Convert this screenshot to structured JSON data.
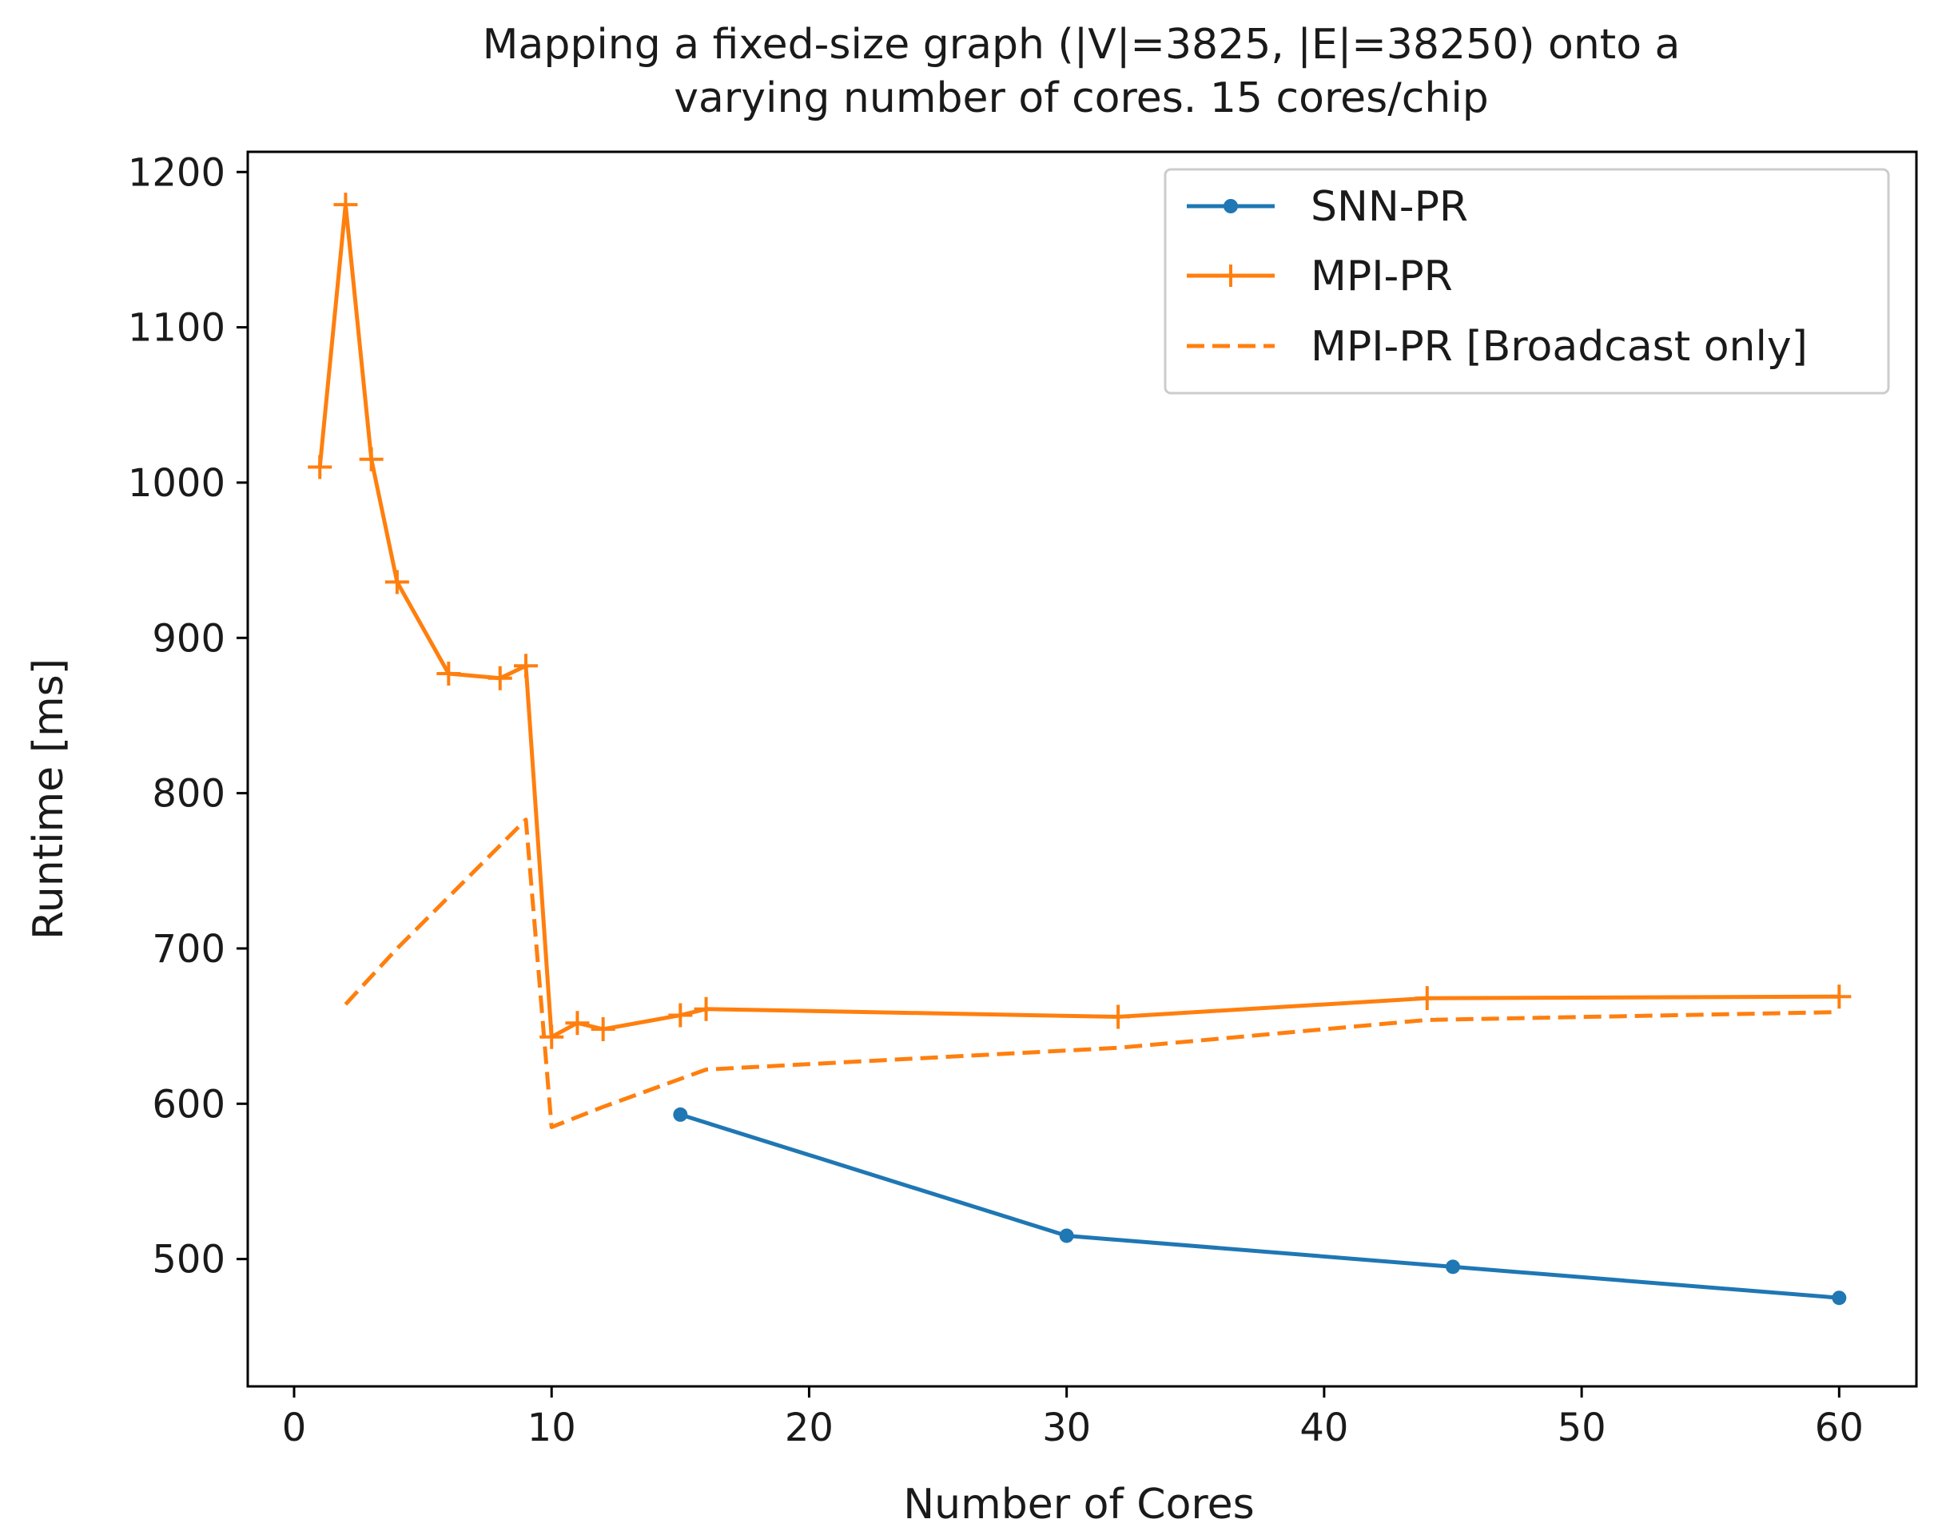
{
  "colors": {
    "snn": "#1f77b4",
    "mpi": "#ff7f0e",
    "axis": "#000000",
    "background": "#ffffff"
  },
  "chart_data": {
    "type": "line",
    "title": [
      "Mapping a fixed-size graph (|V|=3825, |E|=38250) onto a",
      "varying number of cores. 15 cores/chip"
    ],
    "xlabel": "Number of Cores",
    "ylabel": "Runtime [ms]",
    "xlim": [
      -1.8,
      63
    ],
    "ylim": [
      418,
      1213
    ],
    "xticks": [
      0,
      10,
      20,
      30,
      40,
      50,
      60
    ],
    "yticks": [
      500,
      600,
      700,
      800,
      900,
      1000,
      1100,
      1200
    ],
    "grid": false,
    "legend_position": "top-right",
    "series": [
      {
        "name": "SNN-PR",
        "color": "#1f77b4",
        "linestyle": "solid",
        "marker": "dot",
        "x": [
          15,
          30,
          45,
          60
        ],
        "y": [
          593,
          515,
          495,
          475
        ]
      },
      {
        "name": "MPI-PR",
        "color": "#ff7f0e",
        "linestyle": "solid",
        "marker": "plus",
        "x": [
          1,
          2,
          3,
          4,
          6,
          8,
          9,
          10,
          11,
          12,
          15,
          16,
          32,
          44,
          60
        ],
        "y": [
          1010,
          1179,
          1015,
          936,
          877,
          874,
          882,
          643,
          652,
          648,
          657,
          661,
          656,
          668,
          669
        ]
      },
      {
        "name": "MPI-PR [Broadcast only]",
        "color": "#ff7f0e",
        "linestyle": "dashed",
        "marker": "none",
        "x": [
          2,
          4,
          9,
          10,
          12,
          16,
          32,
          44,
          60
        ],
        "y": [
          664,
          700,
          783,
          585,
          598,
          622,
          636,
          654,
          659
        ]
      }
    ]
  }
}
